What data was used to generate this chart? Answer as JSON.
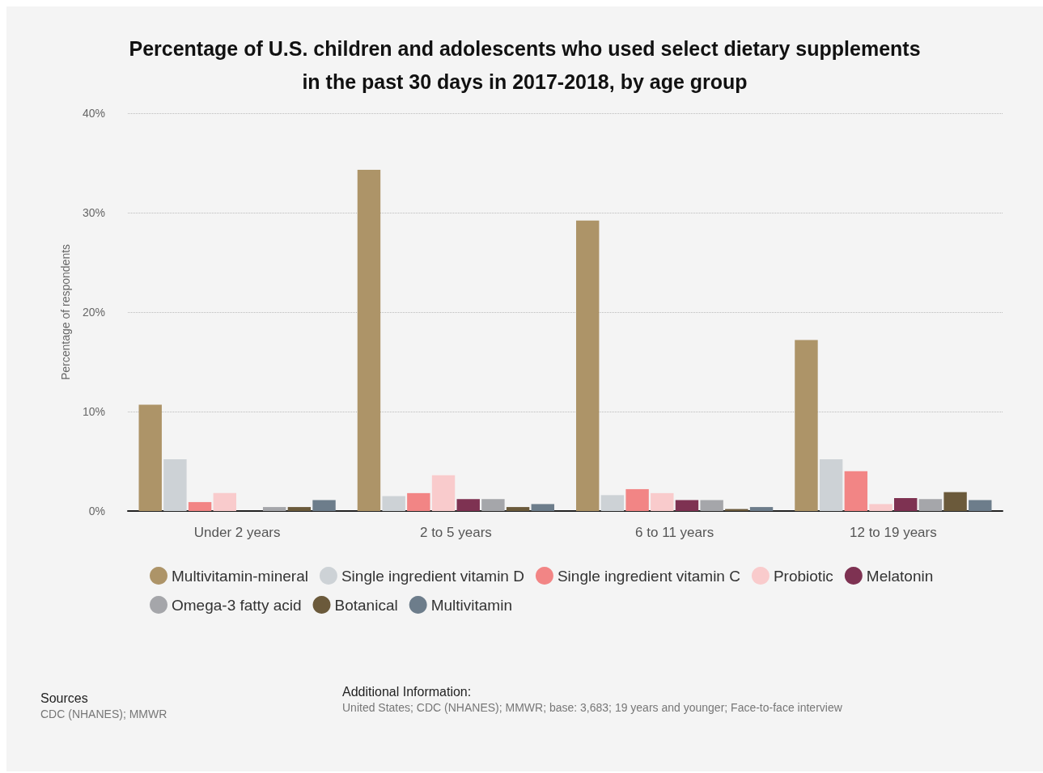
{
  "chart_data": {
    "type": "bar",
    "title": "Percentage of U.S. children and adolescents who used select dietary supplements\nin the past 30 days in 2017-2018, by age group",
    "ylabel": "Percentage of respondents",
    "categories": [
      "Under 2 years",
      "2 to 5 years",
      "6 to 11 years",
      "12 to 19 years"
    ],
    "series": [
      {
        "name": "Multivitamin-mineral",
        "color": "#ad9468",
        "values": [
          10.7,
          34.3,
          29.2,
          17.2
        ]
      },
      {
        "name": "Single ingredient vitamin D",
        "color": "#cdd2d6",
        "values": [
          5.2,
          1.5,
          1.6,
          5.2
        ]
      },
      {
        "name": "Single ingredient vitamin C",
        "color": "#f28585",
        "values": [
          0.9,
          1.8,
          2.2,
          4.0
        ]
      },
      {
        "name": "Probiotic",
        "color": "#f9cbcc",
        "values": [
          1.8,
          3.6,
          1.8,
          0.7
        ]
      },
      {
        "name": "Melatonin",
        "color": "#7e3252",
        "values": [
          0,
          1.2,
          1.1,
          1.3
        ]
      },
      {
        "name": "Omega-3 fatty acid",
        "color": "#a5a6aa",
        "values": [
          0.4,
          1.2,
          1.1,
          1.2
        ]
      },
      {
        "name": "Botanical",
        "color": "#6b5a3b",
        "values": [
          0.4,
          0.4,
          0.2,
          1.9
        ]
      },
      {
        "name": "Multivitamin",
        "color": "#6d7d8b",
        "values": [
          1.1,
          0.7,
          0.4,
          1.1
        ]
      }
    ],
    "ylim": [
      0,
      40
    ],
    "yticks": [
      {
        "value": 0,
        "label": "0%"
      },
      {
        "value": 10,
        "label": "10%"
      },
      {
        "value": 20,
        "label": "20%"
      },
      {
        "value": 30,
        "label": "30%"
      },
      {
        "value": 40,
        "label": "40%"
      }
    ],
    "grid": "y",
    "legend": "bottom",
    "annotations": [
      "Sources",
      "CDC (NHANES); MMWR",
      "Additional Information:",
      "United States; CDC (NHANES); MMWR; base: 3,683; 19 years and younger; Face-to-face interview"
    ]
  }
}
